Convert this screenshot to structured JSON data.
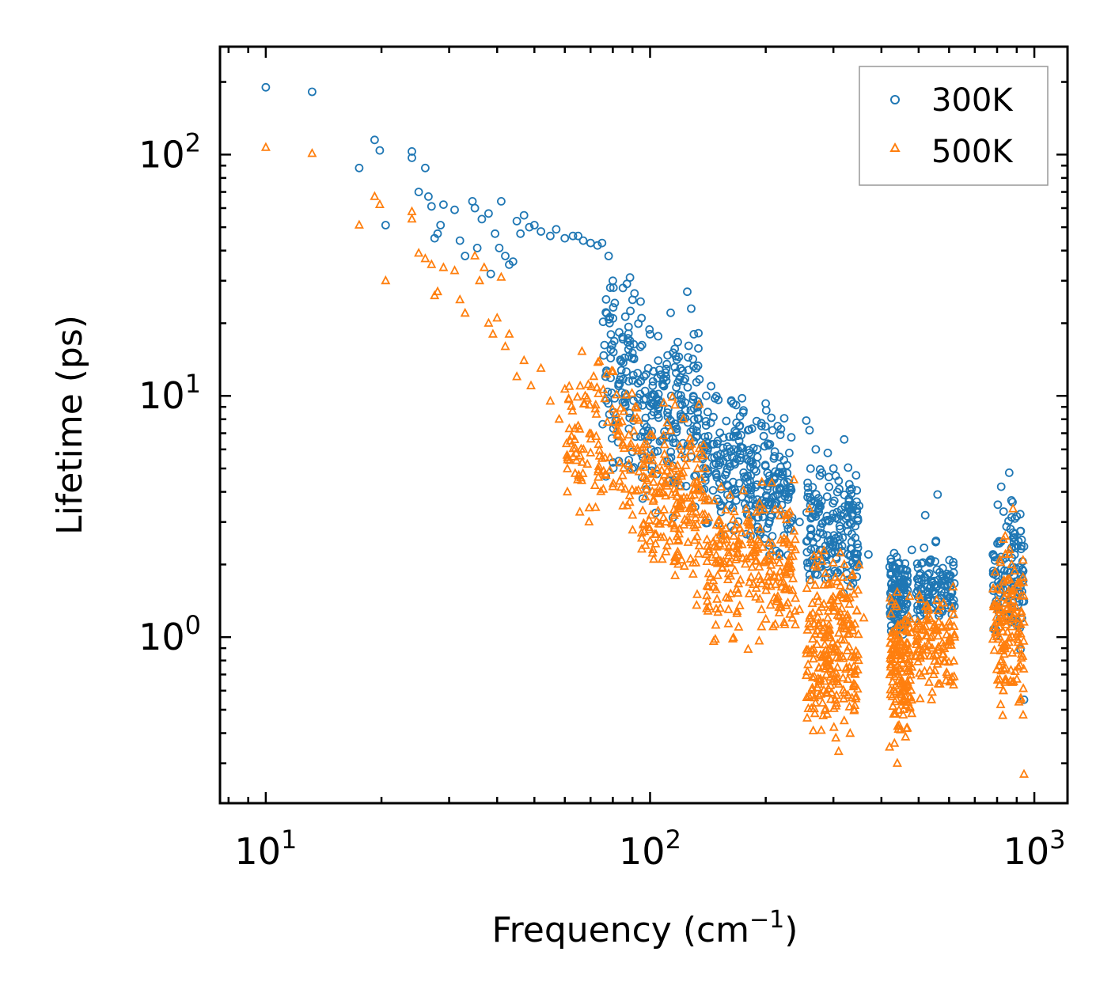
{
  "chart_data": {
    "type": "scatter",
    "title": "",
    "xlabel": "Frequency (cm",
    "xlabel_sup": "−1",
    "xlabel_end": ")",
    "ylabel": "Lifetime (ps)",
    "xscale": "log",
    "yscale": "log",
    "xlim": [
      7.6,
      1220
    ],
    "ylim": [
      0.205,
      280
    ],
    "x_ticks": [
      {
        "base": "10",
        "exp": "1",
        "value": 10
      },
      {
        "base": "10",
        "exp": "2",
        "value": 100
      },
      {
        "base": "10",
        "exp": "3",
        "value": 1000
      }
    ],
    "y_ticks": [
      {
        "base": "10",
        "exp": "0",
        "value": 1
      },
      {
        "base": "10",
        "exp": "1",
        "value": 10
      },
      {
        "base": "10",
        "exp": "2",
        "value": 100
      }
    ],
    "legend_position": "top-right",
    "series": [
      {
        "name": "300K",
        "marker": "circle",
        "color": "#1f77b4",
        "points": [
          [
            10.0,
            190
          ],
          [
            13.2,
            182
          ],
          [
            17.5,
            88
          ],
          [
            19.2,
            115
          ],
          [
            19.8,
            104
          ],
          [
            20.5,
            51
          ],
          [
            24.0,
            103
          ],
          [
            24.0,
            97
          ],
          [
            25.0,
            70
          ],
          [
            26.0,
            88
          ],
          [
            26.5,
            67
          ],
          [
            27.0,
            61
          ],
          [
            27.5,
            45
          ],
          [
            28.0,
            47
          ],
          [
            28.5,
            51
          ],
          [
            29.0,
            62
          ],
          [
            31.0,
            59
          ],
          [
            32.0,
            44
          ],
          [
            33.0,
            38
          ],
          [
            34.5,
            64
          ],
          [
            35.0,
            60
          ],
          [
            35.5,
            41
          ],
          [
            36.5,
            54
          ],
          [
            38.0,
            57
          ],
          [
            38.5,
            32
          ],
          [
            39.5,
            47
          ],
          [
            40.5,
            41
          ],
          [
            41.0,
            64
          ],
          [
            42.0,
            38
          ],
          [
            43.0,
            35
          ],
          [
            44.0,
            36
          ],
          [
            45.0,
            53
          ],
          [
            46.0,
            47
          ],
          [
            47.0,
            56
          ],
          [
            48.5,
            50
          ],
          [
            50.0,
            51
          ],
          [
            52.0,
            48
          ],
          [
            55.0,
            46
          ],
          [
            57.0,
            49
          ],
          [
            60.0,
            45
          ],
          [
            63.0,
            46
          ],
          [
            65.0,
            46
          ],
          [
            67.0,
            44
          ],
          [
            70.0,
            43
          ],
          [
            73.0,
            42
          ],
          [
            75.0,
            43
          ],
          [
            78.0,
            38
          ],
          [
            80.0,
            30
          ],
          [
            85.0,
            28
          ],
          [
            90.0,
            25
          ],
          [
            95.0,
            21
          ],
          [
            100.0,
            18
          ],
          [
            105.0,
            14
          ],
          [
            110.0,
            12
          ],
          [
            120.0,
            13
          ],
          [
            125.0,
            27
          ],
          [
            128.0,
            23
          ],
          [
            130.0,
            18
          ],
          [
            140.0,
            10
          ],
          [
            150.0,
            6.5
          ],
          [
            165.0,
            6.0
          ],
          [
            175.0,
            8.7
          ],
          [
            180.0,
            7.2
          ],
          [
            195.0,
            7.5
          ],
          [
            200.0,
            9.3
          ],
          [
            205.0,
            6.3
          ],
          [
            210.0,
            5.5
          ],
          [
            230.0,
            4.5
          ],
          [
            245.0,
            3.0
          ],
          [
            255.0,
            7.9
          ],
          [
            260.0,
            7.2
          ],
          [
            270.0,
            6.0
          ],
          [
            280.0,
            4.8
          ],
          [
            290.0,
            5.8
          ],
          [
            300.0,
            5.0
          ],
          [
            320.0,
            6.6
          ],
          [
            330.0,
            4.3
          ],
          [
            350.0,
            3.5
          ],
          [
            370.0,
            2.2
          ],
          [
            430.0,
            1.6
          ],
          [
            460.0,
            1.8
          ],
          [
            480.0,
            2.3
          ],
          [
            520.0,
            3.2
          ],
          [
            560.0,
            3.9
          ],
          [
            600.0,
            1.8
          ],
          [
            780.0,
            2.2
          ],
          [
            820.0,
            4.2
          ],
          [
            860.0,
            4.8
          ],
          [
            890.0,
            3.1
          ],
          [
            920.0,
            0.89
          ],
          [
            940.0,
            0.55
          ]
        ]
      },
      {
        "name": "500K",
        "marker": "triangle",
        "color": "#ff7f0e",
        "points": [
          [
            10.0,
            107
          ],
          [
            13.2,
            101
          ],
          [
            17.5,
            51
          ],
          [
            19.2,
            67
          ],
          [
            19.8,
            62
          ],
          [
            20.5,
            30
          ],
          [
            24.0,
            58
          ],
          [
            24.0,
            54
          ],
          [
            25.0,
            39
          ],
          [
            26.0,
            37
          ],
          [
            27.0,
            35
          ],
          [
            27.5,
            26
          ],
          [
            28.0,
            27
          ],
          [
            29.0,
            34
          ],
          [
            31.0,
            33
          ],
          [
            32.0,
            25
          ],
          [
            33.0,
            22
          ],
          [
            35.0,
            38
          ],
          [
            36.0,
            30
          ],
          [
            37.0,
            34
          ],
          [
            38.0,
            20
          ],
          [
            39.0,
            18
          ],
          [
            40.0,
            21
          ],
          [
            41.0,
            31
          ],
          [
            42.0,
            16
          ],
          [
            43.0,
            18
          ],
          [
            45.0,
            12
          ],
          [
            47.0,
            14
          ],
          [
            49.0,
            11
          ],
          [
            52.0,
            13
          ],
          [
            55.0,
            9.5
          ],
          [
            58.0,
            8.0
          ],
          [
            62.0,
            6.5
          ],
          [
            65.0,
            7.5
          ],
          [
            70.0,
            5.8
          ],
          [
            75.0,
            5.5
          ],
          [
            80.0,
            4.2
          ],
          [
            85.0,
            3.5
          ],
          [
            90.0,
            3.2
          ],
          [
            95.0,
            2.7
          ],
          [
            100.0,
            2.5
          ],
          [
            110.0,
            3.0
          ],
          [
            120.0,
            3.5
          ],
          [
            130.0,
            2.9
          ],
          [
            140.0,
            2.2
          ],
          [
            150.0,
            1.8
          ],
          [
            160.0,
            1.3
          ],
          [
            170.0,
            1.1
          ],
          [
            180.0,
            0.89
          ],
          [
            195.0,
            1.3
          ],
          [
            210.0,
            1.8
          ],
          [
            230.0,
            2.0
          ],
          [
            245.0,
            1.3
          ],
          [
            260.0,
            3.4
          ],
          [
            275.0,
            2.2
          ],
          [
            290.0,
            1.2
          ],
          [
            300.0,
            0.7
          ],
          [
            320.0,
            0.45
          ],
          [
            340.0,
            0.5
          ],
          [
            360.0,
            1.2
          ],
          [
            420.0,
            0.35
          ],
          [
            440.0,
            0.3
          ],
          [
            460.0,
            0.6
          ],
          [
            480.0,
            0.75
          ],
          [
            500.0,
            1.0
          ],
          [
            540.0,
            0.55
          ],
          [
            580.0,
            0.85
          ],
          [
            620.0,
            1.0
          ],
          [
            800.0,
            1.3
          ],
          [
            830.0,
            0.6
          ],
          [
            860.0,
            2.2
          ],
          [
            880.0,
            3.4
          ],
          [
            900.0,
            1.5
          ],
          [
            920.0,
            0.55
          ],
          [
            940.0,
            0.27
          ]
        ]
      }
    ],
    "dense_regions": [
      {
        "series": 0,
        "x": [
          75,
          95
        ],
        "y_center": 12,
        "y_spread": 0.32,
        "n": 110
      },
      {
        "series": 0,
        "x": [
          95,
          135
        ],
        "y_center": 8.5,
        "y_spread": 0.3,
        "n": 170
      },
      {
        "series": 0,
        "x": [
          135,
          175
        ],
        "y_center": 5.6,
        "y_spread": 0.22,
        "n": 120
      },
      {
        "series": 0,
        "x": [
          175,
          235
        ],
        "y_center": 4.1,
        "y_spread": 0.22,
        "n": 160
      },
      {
        "series": 0,
        "x": [
          255,
          350
        ],
        "y_center": 2.6,
        "y_spread": 0.22,
        "n": 180
      },
      {
        "series": 0,
        "x": [
          420,
          470
        ],
        "y_center": 1.5,
        "y_spread": 0.14,
        "n": 110
      },
      {
        "series": 0,
        "x": [
          490,
          620
        ],
        "y_center": 1.6,
        "y_spread": 0.13,
        "n": 110
      },
      {
        "series": 0,
        "x": [
          780,
          940
        ],
        "y_center": 1.9,
        "y_spread": 0.22,
        "n": 110
      },
      {
        "series": 1,
        "x": [
          60,
          95
        ],
        "y_center": 6.5,
        "y_spread": 0.3,
        "n": 130
      },
      {
        "series": 1,
        "x": [
          95,
          140
        ],
        "y_center": 3.8,
        "y_spread": 0.3,
        "n": 190
      },
      {
        "series": 1,
        "x": [
          140,
          240
        ],
        "y_center": 2.0,
        "y_spread": 0.25,
        "n": 230
      },
      {
        "series": 1,
        "x": [
          255,
          350
        ],
        "y_center": 0.95,
        "y_spread": 0.3,
        "n": 240
      },
      {
        "series": 1,
        "x": [
          420,
          480
        ],
        "y_center": 0.72,
        "y_spread": 0.22,
        "n": 150
      },
      {
        "series": 1,
        "x": [
          490,
          620
        ],
        "y_center": 0.95,
        "y_spread": 0.17,
        "n": 110
      },
      {
        "series": 1,
        "x": [
          780,
          940
        ],
        "y_center": 1.1,
        "y_spread": 0.3,
        "n": 140
      }
    ]
  }
}
